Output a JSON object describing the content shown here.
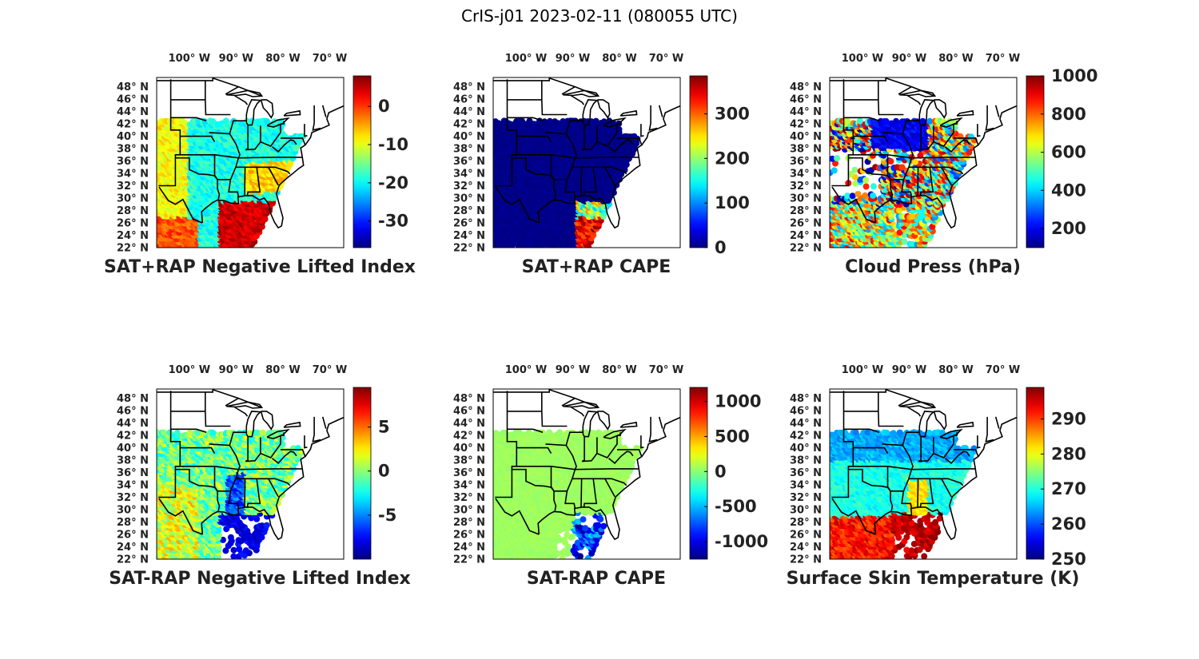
{
  "figure": {
    "title": "CrIS-j01 2023-02-11 (080055 UTC)",
    "lon_ticks": [
      "100",
      "90",
      "80",
      "70"
    ],
    "lon_hemisphere": "W",
    "lat_ticks": [
      "48",
      "46",
      "44",
      "42",
      "40",
      "38",
      "36",
      "34",
      "32",
      "30",
      "28",
      "26",
      "24",
      "22"
    ],
    "lat_hemisphere": "N",
    "degree_symbol": "°",
    "colormap": "jet"
  },
  "panels": [
    {
      "title": "SAT+RAP Negative Lifted Index",
      "colorbar": {
        "min": -37,
        "max": 8,
        "ticks": [
          "0",
          "-10",
          "-20",
          "-30"
        ],
        "tick_values": [
          0,
          -10,
          -20,
          -30
        ]
      },
      "field": "nli_sum"
    },
    {
      "title": "SAT+RAP CAPE",
      "colorbar": {
        "min": 0,
        "max": 385,
        "ticks": [
          "300",
          "200",
          "100",
          "0"
        ],
        "tick_values": [
          300,
          200,
          100,
          0
        ]
      },
      "field": "cape_sum"
    },
    {
      "title": "Cloud Press (hPa)",
      "colorbar": {
        "min": 100,
        "max": 1000,
        "ticks": [
          "1000",
          "800",
          "600",
          "400",
          "200"
        ],
        "tick_values": [
          1000,
          800,
          600,
          400,
          200
        ]
      },
      "field": "cloud_press"
    },
    {
      "title": "SAT-RAP Negative Lifted Index",
      "colorbar": {
        "min": -10,
        "max": 9.5,
        "ticks": [
          "5",
          "0",
          "-5"
        ],
        "tick_values": [
          5,
          0,
          -5
        ]
      },
      "field": "nli_diff"
    },
    {
      "title": "SAT-RAP CAPE",
      "colorbar": {
        "min": -1250,
        "max": 1200,
        "ticks": [
          "1000",
          "500",
          "0",
          "-500",
          "-1000"
        ],
        "tick_values": [
          1000,
          500,
          0,
          -500,
          -1000
        ]
      },
      "field": "cape_diff"
    },
    {
      "title": "Surface Skin Temperature (K)",
      "colorbar": {
        "min": 250,
        "max": 299,
        "ticks": [
          "290",
          "280",
          "270",
          "260",
          "250"
        ],
        "tick_values": [
          290,
          280,
          270,
          260,
          250
        ]
      },
      "field": "skin_temp"
    }
  ]
}
